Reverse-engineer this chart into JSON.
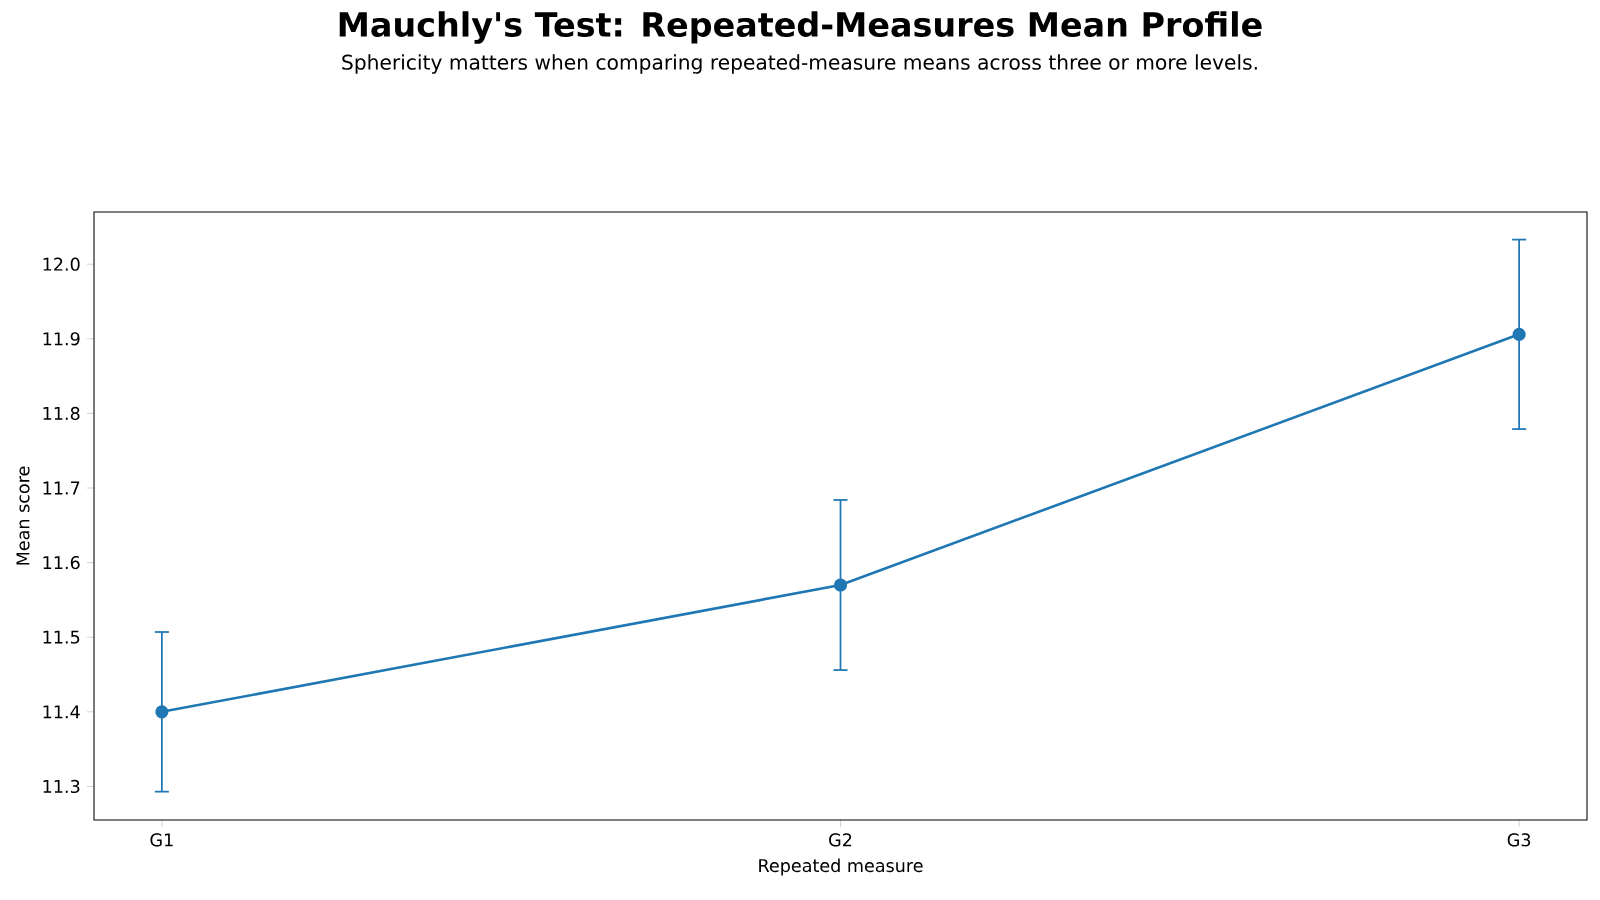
{
  "chart_data": {
    "type": "line",
    "title": "Mauchly's Test: Repeated-Measures Mean Profile",
    "subtitle": "Sphericity matters when comparing repeated-measure means across three or more levels.",
    "xlabel": "Repeated measure",
    "ylabel": "Mean score",
    "categories": [
      "G1",
      "G2",
      "G3"
    ],
    "values": [
      11.4,
      11.57,
      11.906
    ],
    "errors": [
      0.107,
      0.114,
      0.127
    ],
    "color": "#1f77b4",
    "marker": "circle",
    "ylim": [
      11.255,
      12.07
    ],
    "yticks": [
      11.3,
      11.4,
      11.5,
      11.6,
      11.7,
      11.8,
      11.9,
      {
        "value": 12.0,
        "label": "12.0"
      }
    ]
  }
}
